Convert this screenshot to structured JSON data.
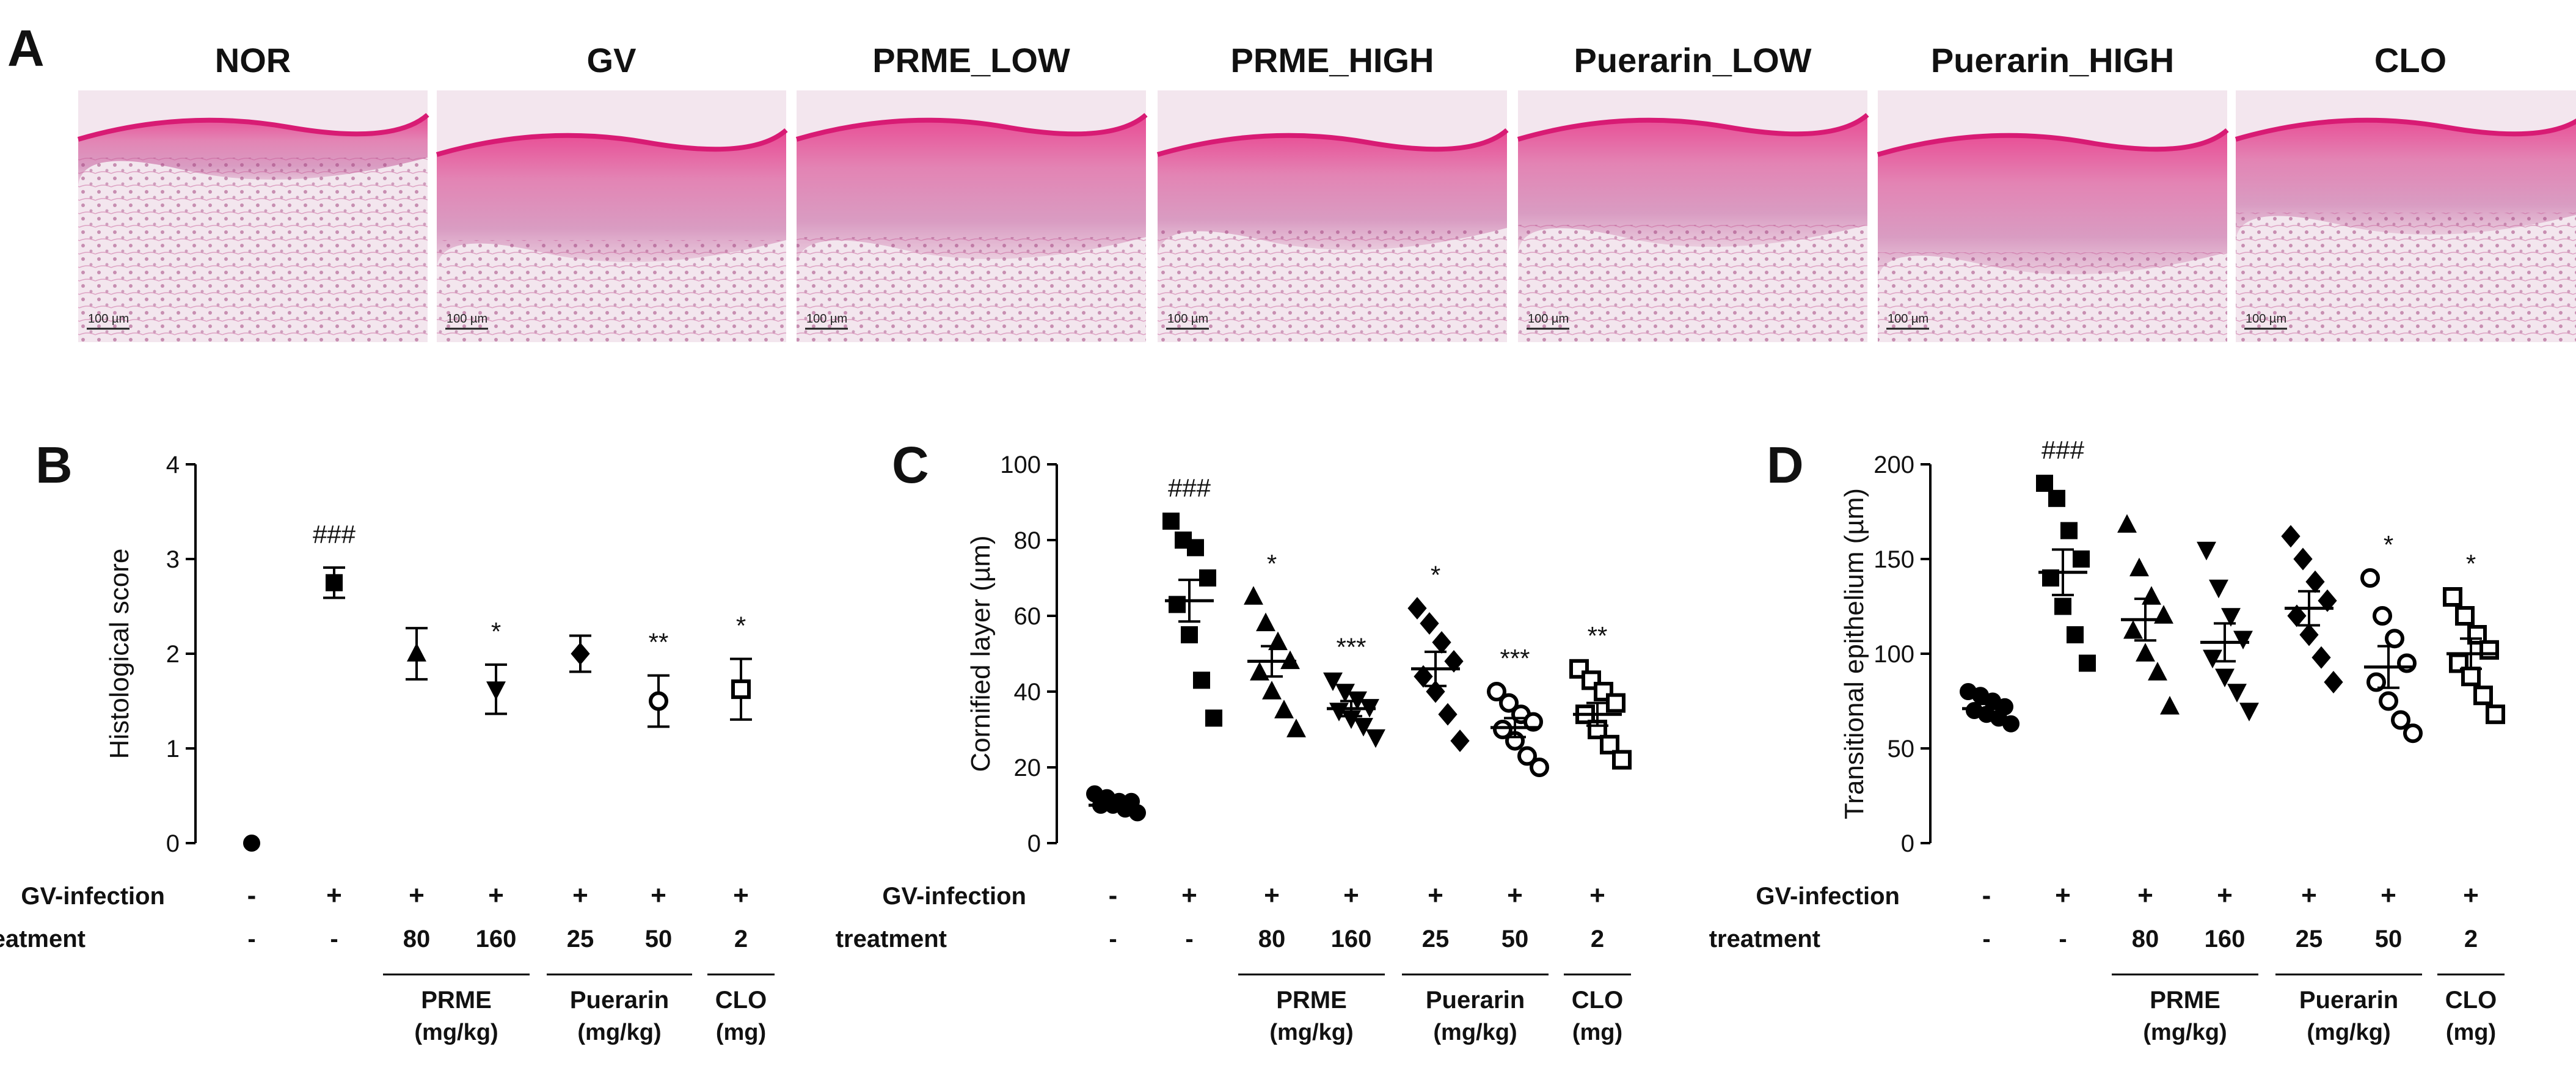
{
  "panel_letters": {
    "a": "A",
    "b": "B",
    "c": "C",
    "d": "D"
  },
  "histology": {
    "groups": [
      "NOR",
      "GV",
      "PRME_LOW",
      "PRME_HIGH",
      "Puerarin_LOW",
      "Puerarin_HIGH",
      "CLO"
    ],
    "scale_bar_label": "100 µm"
  },
  "row_labels": {
    "infection": "GV-infection",
    "treatment": "treatment"
  },
  "infection_signs": [
    "-",
    "+",
    "+",
    "+",
    "+",
    "+",
    "+"
  ],
  "treatment_doses": [
    "-",
    "-",
    "80",
    "160",
    "25",
    "50",
    "2"
  ],
  "dose_groups": [
    {
      "name": "PRME",
      "unit": "(mg/kg)"
    },
    {
      "name": "Puerarin",
      "unit": "(mg/kg)"
    },
    {
      "name": "CLO",
      "unit": "(mg)"
    }
  ],
  "chart_data": [
    {
      "type": "scatter",
      "panel": "B",
      "ylabel": "Histological score",
      "ylim": [
        0,
        4
      ],
      "yticks": [
        "0",
        "1",
        "2",
        "3",
        "4"
      ],
      "groups": [
        {
          "mean": 0.0,
          "sem": 0.0,
          "points": [],
          "significance": ""
        },
        {
          "mean": 2.75,
          "sem": 0.16,
          "points": [],
          "significance": "###"
        },
        {
          "mean": 2.0,
          "sem": 0.27,
          "points": [],
          "significance": ""
        },
        {
          "mean": 1.625,
          "sem": 0.26,
          "points": [],
          "significance": "*"
        },
        {
          "mean": 2.0,
          "sem": 0.19,
          "points": [],
          "significance": ""
        },
        {
          "mean": 1.5,
          "sem": 0.27,
          "points": [],
          "significance": "**"
        },
        {
          "mean": 1.625,
          "sem": 0.32,
          "points": [],
          "significance": "*"
        }
      ]
    },
    {
      "type": "scatter",
      "panel": "C",
      "ylabel": "Cornified layer (µm)",
      "ylim": [
        0,
        100
      ],
      "yticks": [
        "0",
        "20",
        "40",
        "60",
        "80",
        "100"
      ],
      "groups": [
        {
          "mean": 10,
          "sem": 0.8,
          "points": [
            13,
            12,
            11,
            11,
            10,
            10,
            9,
            8
          ],
          "significance": ""
        },
        {
          "mean": 64,
          "sem": 5.5,
          "points": [
            85,
            80,
            78,
            70,
            63,
            55,
            43,
            33
          ],
          "significance": "###"
        },
        {
          "mean": 48,
          "sem": 4,
          "points": [
            65,
            58,
            53,
            48,
            45,
            40,
            35,
            30
          ],
          "significance": "*"
        },
        {
          "mean": 35.5,
          "sem": 2,
          "points": [
            43,
            40,
            38,
            36,
            35,
            33,
            31,
            28
          ],
          "significance": "***"
        },
        {
          "mean": 46,
          "sem": 4.5,
          "points": [
            62,
            58,
            53,
            48,
            44,
            40,
            34,
            27
          ],
          "significance": "*"
        },
        {
          "mean": 30.5,
          "sem": 2.5,
          "points": [
            40,
            37,
            34,
            32,
            30,
            27,
            23,
            20
          ],
          "significance": "***"
        },
        {
          "mean": 34,
          "sem": 3,
          "points": [
            46,
            43,
            40,
            37,
            34,
            30,
            26,
            22
          ],
          "significance": "**"
        }
      ]
    },
    {
      "type": "scatter",
      "panel": "D",
      "ylabel": "Transitional epithelium (µm)",
      "ylim": [
        0,
        200
      ],
      "yticks": [
        "0",
        "50",
        "100",
        "150",
        "200"
      ],
      "groups": [
        {
          "mean": 71,
          "sem": 2.5,
          "points": [
            80,
            78,
            75,
            72,
            70,
            68,
            66,
            63
          ],
          "significance": ""
        },
        {
          "mean": 143,
          "sem": 12,
          "points": [
            190,
            182,
            165,
            150,
            140,
            125,
            110,
            95
          ],
          "significance": "###"
        },
        {
          "mean": 118,
          "sem": 11,
          "points": [
            168,
            145,
            130,
            120,
            112,
            100,
            90,
            72
          ],
          "significance": ""
        },
        {
          "mean": 106,
          "sem": 10,
          "points": [
            155,
            135,
            120,
            108,
            98,
            88,
            80,
            70
          ],
          "significance": ""
        },
        {
          "mean": 124,
          "sem": 9,
          "points": [
            162,
            150,
            138,
            128,
            120,
            110,
            98,
            85
          ],
          "significance": ""
        },
        {
          "mean": 93,
          "sem": 11,
          "points": [
            140,
            120,
            108,
            95,
            85,
            75,
            65,
            58
          ],
          "significance": "*"
        },
        {
          "mean": 100,
          "sem": 8,
          "points": [
            130,
            120,
            110,
            102,
            95,
            88,
            78,
            68
          ],
          "significance": "*"
        }
      ]
    }
  ],
  "marker_types": [
    "filled-circle",
    "filled-square",
    "filled-triangle-up",
    "filled-triangle-down",
    "filled-diamond",
    "open-circle",
    "open-square"
  ]
}
